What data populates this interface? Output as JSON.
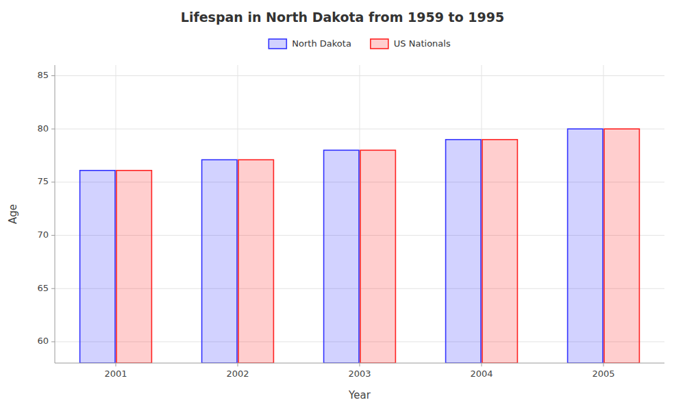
{
  "chart_data": {
    "type": "bar",
    "title": "Lifespan in North Dakota from 1959 to 1995",
    "x_label": "Year",
    "y_label": "Age",
    "categories": [
      "2001",
      "2002",
      "2003",
      "2004",
      "2005"
    ],
    "series": [
      {
        "name": "North Dakota",
        "color": "#3333ff",
        "values": [
          76.1,
          77.1,
          78.0,
          79.0,
          80.0
        ]
      },
      {
        "name": "US Nationals",
        "color": "#ff2222",
        "values": [
          76.1,
          77.1,
          78.0,
          79.0,
          80.0
        ]
      }
    ],
    "ylim": [
      58,
      86
    ],
    "yticks": [
      60,
      65,
      70,
      75,
      80,
      85
    ],
    "grid": true,
    "legend": "top"
  }
}
